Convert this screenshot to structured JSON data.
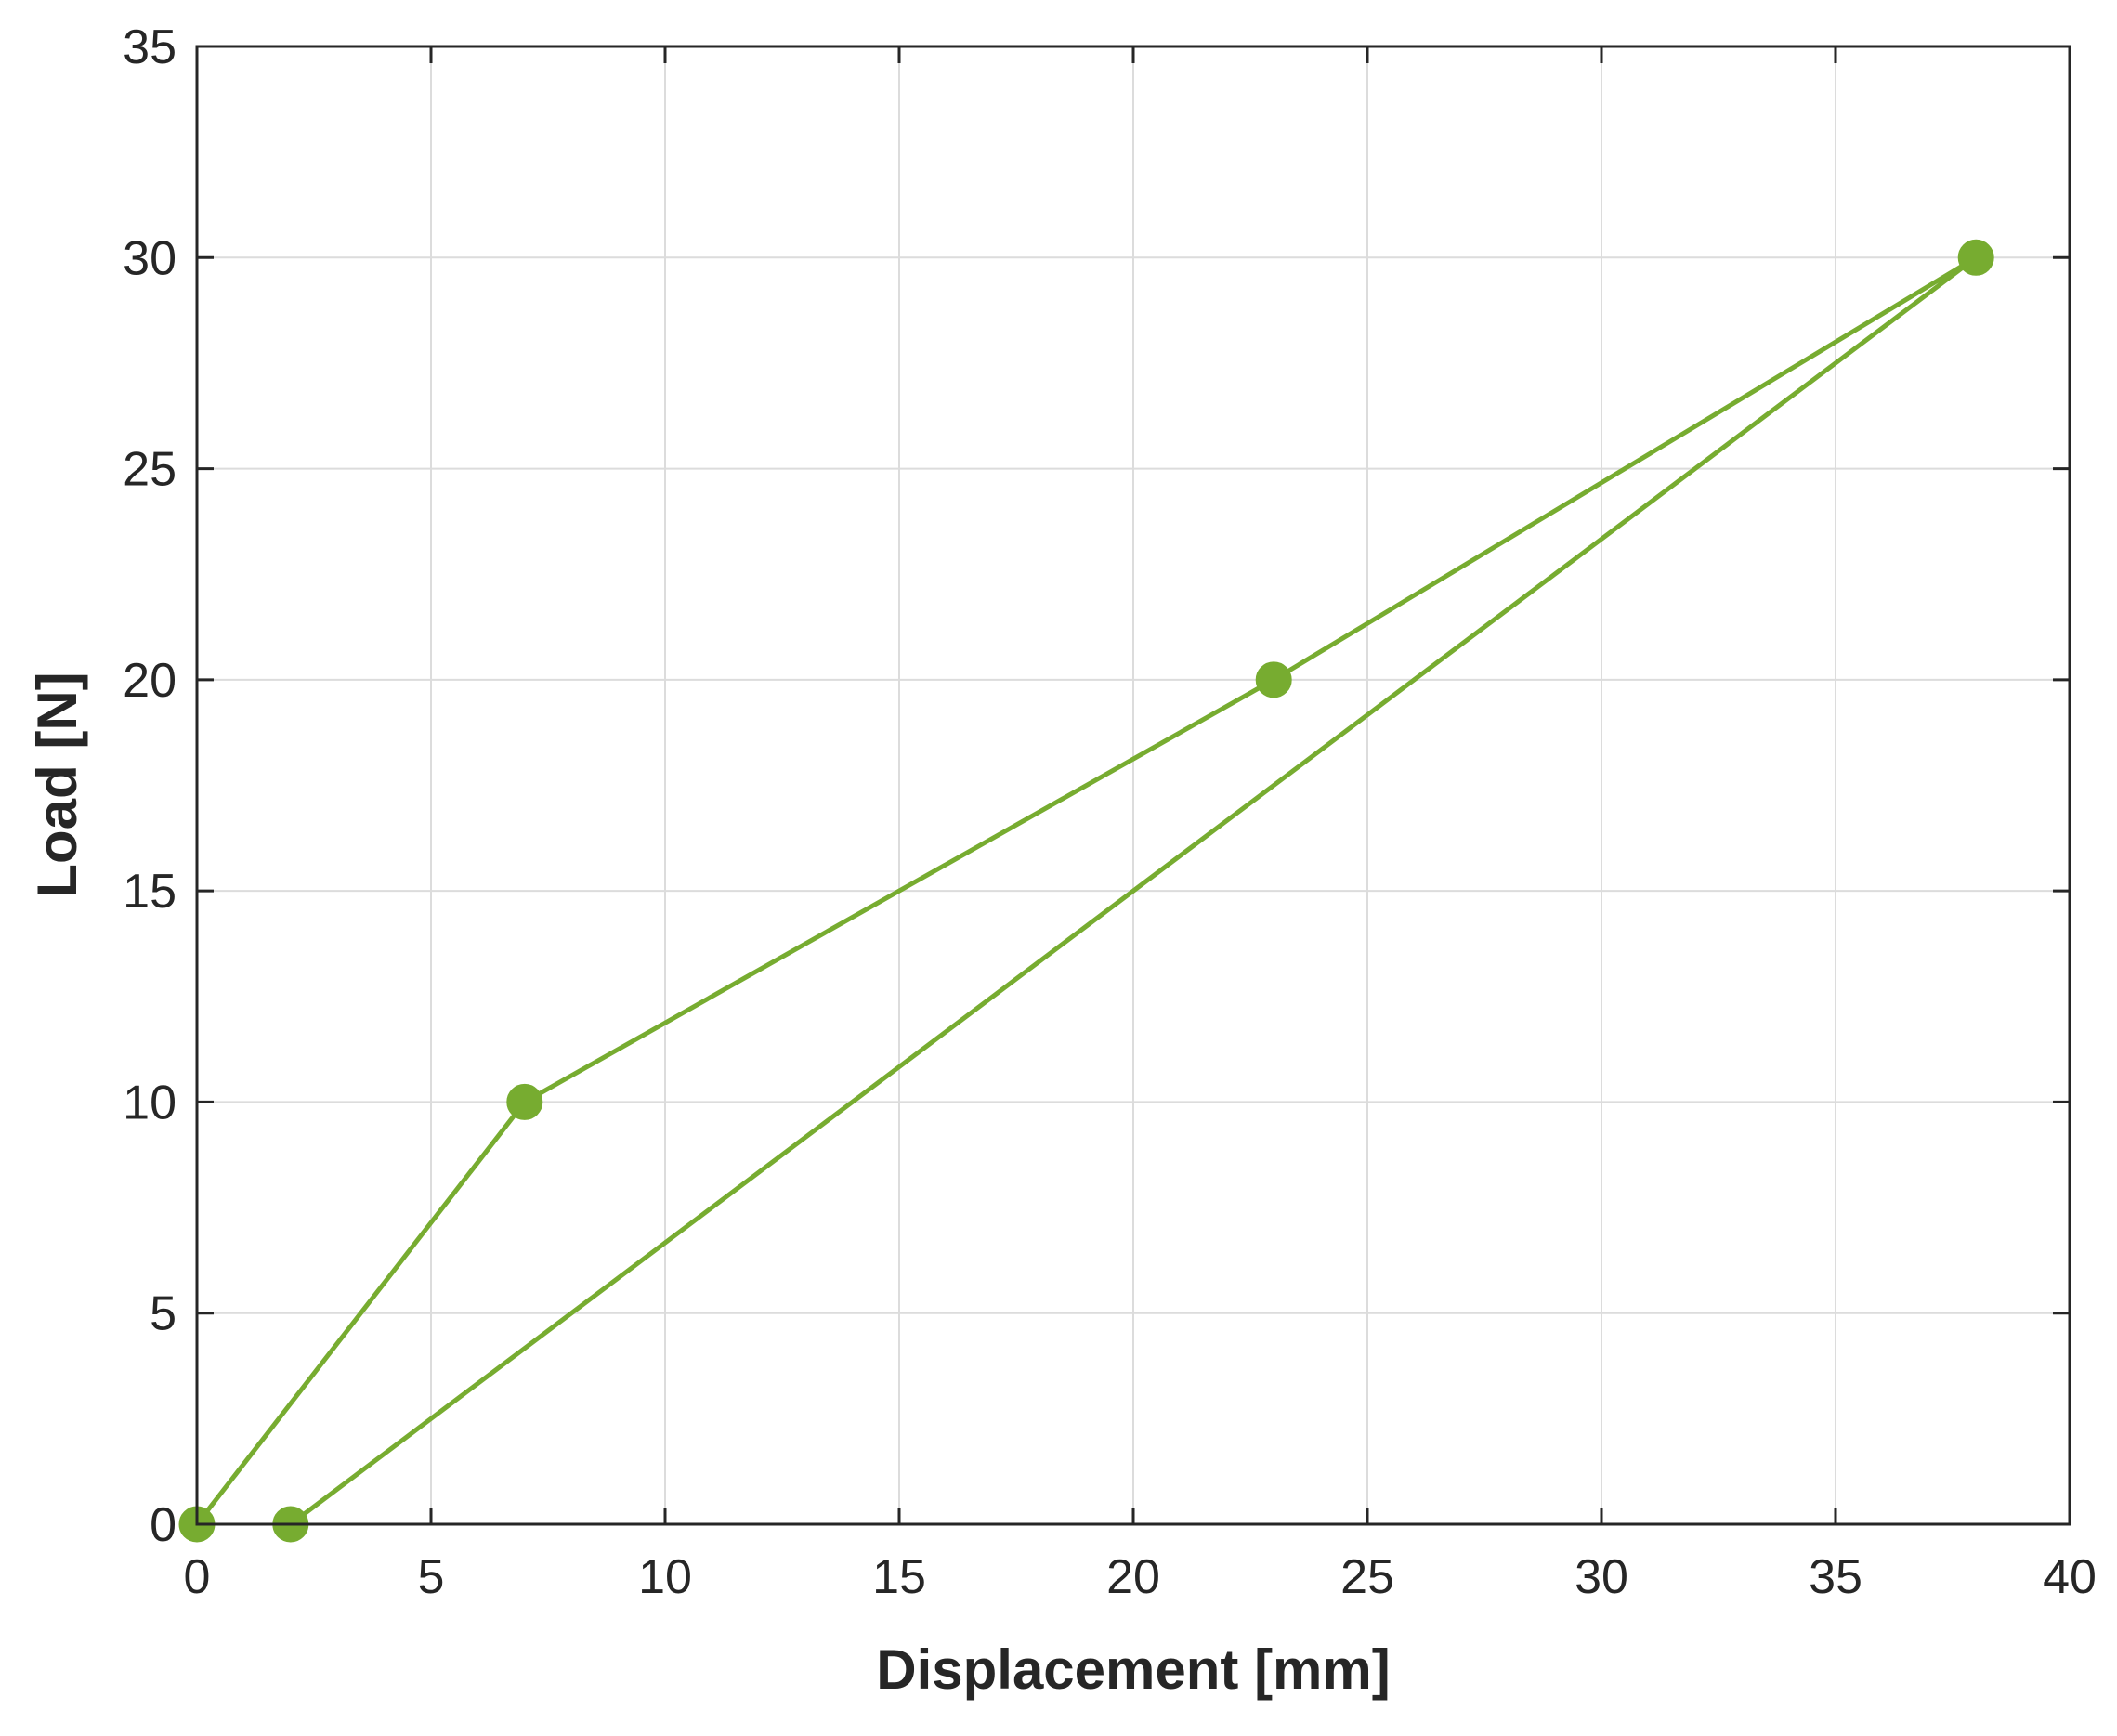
{
  "chart_data": {
    "type": "line",
    "xlabel": "Displacement [mm]",
    "ylabel": "Load [N]",
    "xlim": [
      0,
      40
    ],
    "ylim": [
      0,
      35
    ],
    "xticks": [
      "0",
      "5",
      "10",
      "15",
      "20",
      "25",
      "30",
      "35",
      "40"
    ],
    "yticks": [
      "0",
      "5",
      "10",
      "15",
      "20",
      "25",
      "30",
      "35"
    ],
    "grid": true,
    "series": [
      {
        "color": "#77ac30",
        "marker": "circle",
        "points": [
          {
            "x": 0,
            "y": 0
          },
          {
            "x": 7,
            "y": 10
          },
          {
            "x": 23,
            "y": 20
          },
          {
            "x": 38,
            "y": 30
          },
          {
            "x": 2,
            "y": 0
          }
        ]
      }
    ]
  }
}
